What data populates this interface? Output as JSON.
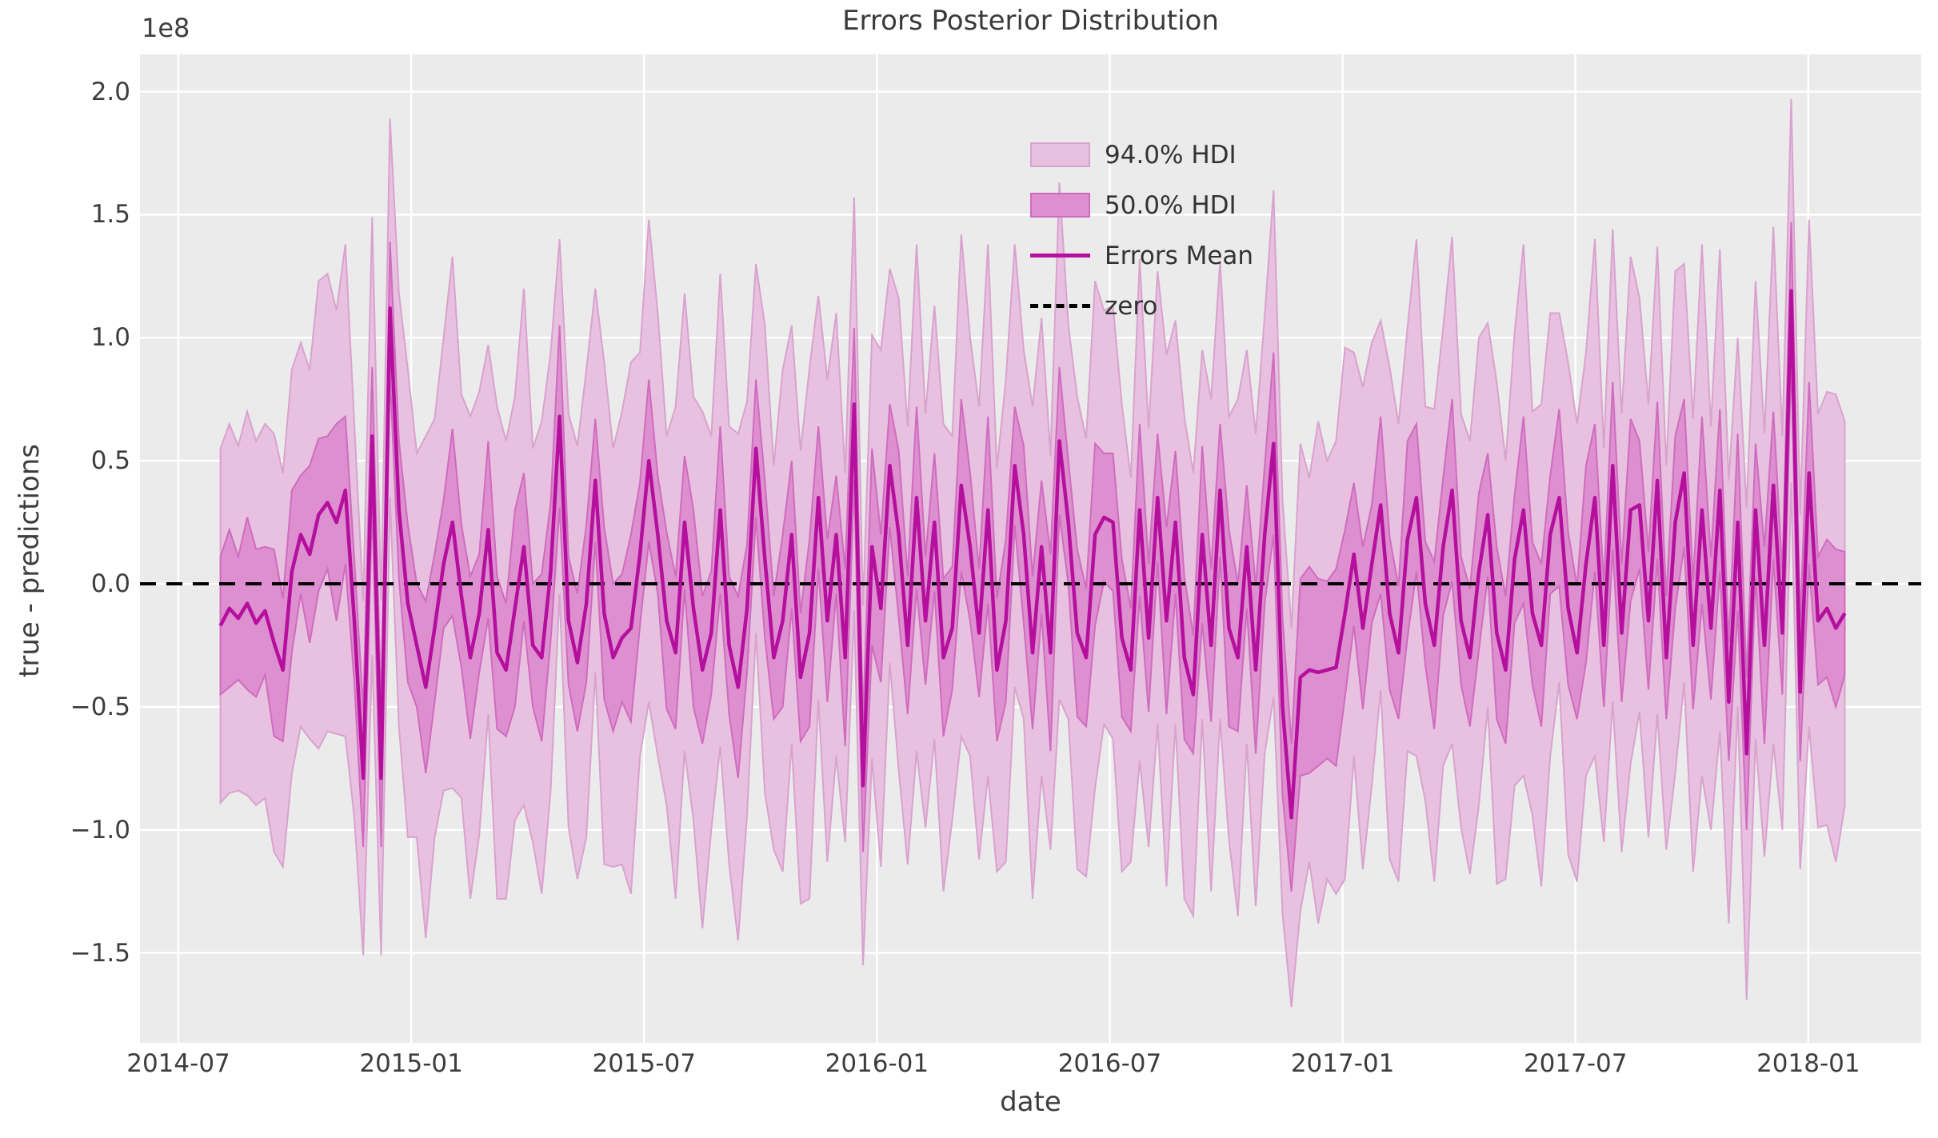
{
  "chart_data": {
    "type": "line",
    "title": "Errors Posterior Distribution",
    "xlabel": "date",
    "ylabel": "true - predictions",
    "y_offset_label": "1e8",
    "grid": true,
    "background": "plot area light gray with white gridlines",
    "legend_position": "upper center",
    "legend": [
      {
        "label": "94.0% HDI",
        "type": "patch",
        "fill": "#e7c1df",
        "edge": "#d9a2cf"
      },
      {
        "label": "50.0% HDI",
        "type": "patch",
        "fill": "#dd8fd0",
        "edge": "#cf6cbf"
      },
      {
        "label": "Errors Mean",
        "type": "line",
        "color": "#b40f9d"
      },
      {
        "label": "zero",
        "type": "dashed-line",
        "color": "#000000"
      }
    ],
    "colors": {
      "axes_bg": "#ebebeb",
      "grid": "#ffffff",
      "hdi94_fill": "#e7c1df",
      "hdi94_edge": "#d9a2cf",
      "hdi50_fill": "#dd8fd0",
      "hdi50_edge": "#cf6cbf",
      "mean_line": "#b40f9d",
      "zero_line": "#000000",
      "text": "#3d3d3d"
    },
    "x_ticks": [
      "2014-07",
      "2015-01",
      "2015-07",
      "2016-01",
      "2016-07",
      "2017-01",
      "2017-07",
      "2018-01"
    ],
    "x_tick_months": [
      0,
      6,
      12,
      18,
      24,
      30,
      36,
      42
    ],
    "y_ticks": [
      "2.0",
      "1.5",
      "1.0",
      "0.5",
      "0.0",
      "−0.5",
      "−1.0",
      "−1.5"
    ],
    "y_tick_values": [
      200,
      150,
      100,
      50,
      0,
      -50,
      -100,
      -150
    ],
    "ylim_1e7": [
      -186.6,
      215.0
    ],
    "x_start_date": "2014-08-03",
    "x_step_days": 7,
    "n_points": 183,
    "value_scale": "values below are in units of 1e7 (axis displayed as 1e8)",
    "zero_reference": 0,
    "mean": [
      -17,
      -10,
      -14,
      -8,
      -16,
      -11,
      -24,
      -35,
      5,
      20,
      12,
      28,
      33,
      25,
      38,
      -15,
      -79,
      60,
      -79,
      112,
      30,
      -8,
      -25,
      -42,
      -18,
      8,
      25,
      -5,
      -30,
      -12,
      22,
      -28,
      -35,
      -10,
      15,
      -25,
      -30,
      5,
      68,
      -15,
      -32,
      -8,
      42,
      -12,
      -30,
      -22,
      -18,
      12,
      50,
      20,
      -15,
      -28,
      25,
      -10,
      -35,
      -20,
      30,
      -25,
      -42,
      -10,
      55,
      10,
      -30,
      -15,
      20,
      -38,
      -20,
      35,
      -15,
      20,
      -30,
      73,
      -82,
      15,
      -10,
      48,
      20,
      -25,
      35,
      -15,
      25,
      -30,
      -18,
      40,
      15,
      -20,
      30,
      -35,
      -15,
      48,
      20,
      -28,
      15,
      -28,
      58,
      25,
      -20,
      -30,
      20,
      27,
      25,
      -22,
      -35,
      30,
      -22,
      35,
      -15,
      25,
      -30,
      -45,
      20,
      -25,
      38,
      -18,
      -30,
      15,
      -35,
      20,
      57,
      -50,
      -95,
      -38,
      -35,
      -36,
      -35,
      -34,
      -12,
      12,
      -18,
      8,
      32,
      -12,
      -28,
      18,
      35,
      -8,
      -25,
      15,
      38,
      -15,
      -30,
      5,
      28,
      -20,
      -35,
      10,
      30,
      -12,
      -25,
      20,
      35,
      -10,
      -28,
      8,
      35,
      -25,
      48,
      -20,
      30,
      32,
      -15,
      42,
      -30,
      25,
      45,
      -25,
      30,
      -18,
      38,
      -48,
      25,
      -69,
      30,
      -25,
      40,
      -20,
      119,
      -44,
      45,
      -15,
      -10,
      -18,
      -12
    ],
    "hdi50_halfwidth": [
      28,
      32,
      25,
      35,
      30,
      26,
      38,
      29,
      33,
      24,
      36,
      31,
      27,
      40,
      30,
      25,
      28,
      28,
      28,
      27,
      28,
      32,
      25,
      35,
      30,
      26,
      38,
      29,
      33,
      24,
      36,
      31,
      27,
      40,
      30,
      25,
      34,
      28,
      37,
      26,
      28,
      32,
      25,
      35,
      30,
      26,
      38,
      29,
      33,
      24,
      36,
      31,
      27,
      40,
      30,
      25,
      34,
      28,
      37,
      26,
      28,
      32,
      25,
      35,
      30,
      26,
      38,
      29,
      33,
      24,
      36,
      31,
      27,
      40,
      30,
      25,
      34,
      28,
      37,
      26,
      28,
      32,
      25,
      35,
      30,
      26,
      38,
      29,
      33,
      24,
      36,
      31,
      27,
      40,
      30,
      25,
      34,
      28,
      37,
      26,
      28,
      32,
      25,
      35,
      30,
      26,
      38,
      29,
      33,
      24,
      36,
      31,
      27,
      40,
      30,
      25,
      34,
      28,
      37,
      36,
      30,
      40,
      42,
      38,
      36,
      40,
      34,
      29,
      33,
      24,
      36,
      31,
      27,
      40,
      30,
      25,
      34,
      28,
      37,
      26,
      28,
      32,
      25,
      35,
      30,
      26,
      38,
      29,
      33,
      24,
      36,
      31,
      27,
      40,
      30,
      25,
      34,
      28,
      37,
      26,
      28,
      32,
      25,
      35,
      30,
      26,
      38,
      29,
      33,
      24,
      36,
      31,
      27,
      40,
      30,
      25,
      28,
      28,
      37,
      26,
      28,
      32,
      25
    ],
    "hdi94_halfwidth": [
      72,
      75,
      70,
      78,
      74,
      76,
      85,
      80,
      82,
      78,
      75,
      95,
      93,
      86,
      100,
      80,
      72,
      89,
      72,
      77,
      88,
      95,
      78,
      102,
      85,
      92,
      108,
      82,
      98,
      90,
      75,
      100,
      93,
      86,
      105,
      80,
      96,
      89,
      72,
      84,
      88,
      95,
      78,
      102,
      85,
      92,
      108,
      82,
      98,
      90,
      75,
      100,
      93,
      86,
      105,
      80,
      96,
      89,
      103,
      84,
      75,
      95,
      78,
      102,
      85,
      92,
      108,
      82,
      98,
      90,
      75,
      84,
      73,
      86,
      105,
      80,
      96,
      89,
      103,
      84,
      88,
      95,
      78,
      102,
      85,
      92,
      108,
      82,
      98,
      90,
      75,
      100,
      93,
      80,
      105,
      80,
      96,
      89,
      103,
      84,
      88,
      95,
      78,
      102,
      85,
      92,
      108,
      82,
      98,
      90,
      75,
      100,
      93,
      86,
      105,
      80,
      96,
      89,
      103,
      84,
      77,
      95,
      78,
      102,
      85,
      92,
      108,
      82,
      98,
      90,
      75,
      100,
      93,
      86,
      105,
      80,
      96,
      89,
      103,
      84,
      88,
      95,
      78,
      102,
      85,
      92,
      108,
      82,
      98,
      90,
      75,
      100,
      93,
      86,
      105,
      80,
      96,
      89,
      103,
      84,
      88,
      95,
      78,
      102,
      85,
      92,
      108,
      82,
      98,
      90,
      75,
      100,
      93,
      86,
      105,
      80,
      78,
      72,
      103,
      84,
      88,
      95,
      78
    ]
  }
}
